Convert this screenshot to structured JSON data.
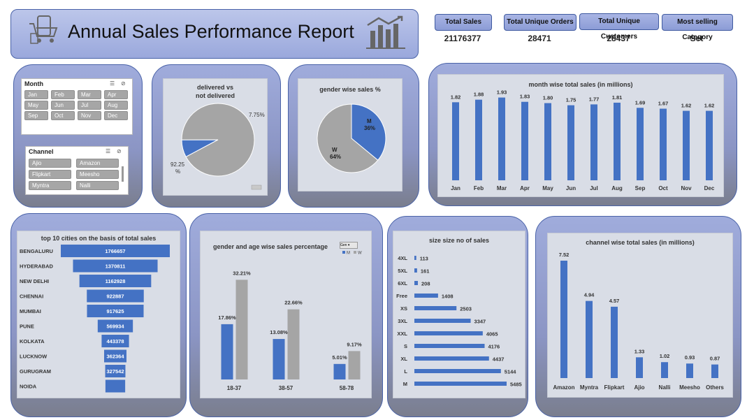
{
  "header": {
    "title": "Annual Sales Performance Report"
  },
  "kpis": [
    {
      "label": "Total Sales",
      "value": "21176377"
    },
    {
      "label": "Total Unique Orders",
      "value": "28471"
    },
    {
      "label": "Total Unique Customers",
      "value": "28437"
    },
    {
      "label": "Most selling Category",
      "value": "Set"
    }
  ],
  "slicers": {
    "month": {
      "title": "Month",
      "items": [
        "Jan",
        "Feb",
        "Mar",
        "Apr",
        "May",
        "Jun",
        "Jul",
        "Aug",
        "Sep",
        "Oct",
        "Nov",
        "Dec"
      ]
    },
    "channel": {
      "title": "Channel",
      "items": [
        "Ajio",
        "Amazon",
        "Flipkart",
        "Meesho",
        "Myntra",
        "Nalli"
      ]
    }
  },
  "chart_data": [
    {
      "id": "delivered",
      "type": "pie",
      "title": "delivered vs not delivered",
      "title_lines": [
        "delivered vs",
        "not delivered"
      ],
      "slices": [
        {
          "label": "7.75%",
          "value": 7.75,
          "color": "#4472c4"
        },
        {
          "label": "92.25 %",
          "value": 92.25,
          "color": "#a5a5a5"
        }
      ]
    },
    {
      "id": "gender",
      "type": "pie",
      "title": "gender wise sales %",
      "slices": [
        {
          "label": "M",
          "pct": "36%",
          "value": 36,
          "color": "#4472c4"
        },
        {
          "label": "W",
          "pct": "64%",
          "value": 64,
          "color": "#a5a5a5"
        }
      ]
    },
    {
      "id": "month",
      "type": "bar",
      "title": "month wise total sales (in millions)",
      "categories": [
        "Jan",
        "Feb",
        "Mar",
        "Apr",
        "May",
        "Jun",
        "Jul",
        "Aug",
        "Sep",
        "Oct",
        "Nov",
        "Dec"
      ],
      "values": [
        1.82,
        1.88,
        1.93,
        1.83,
        1.8,
        1.75,
        1.77,
        1.81,
        1.69,
        1.67,
        1.62,
        1.62
      ],
      "labels": [
        "1.82",
        "1.88",
        "1.93",
        "1.83",
        "1.80",
        "1.75",
        "1.77",
        "1.81",
        "1.69",
        "1.67",
        "1.62",
        "1.62"
      ],
      "color": "#4472c4"
    },
    {
      "id": "cities",
      "type": "bar",
      "orientation": "horizontal-funnel",
      "title": "top 10 cities on the basis of total sales",
      "categories": [
        "BENGALURU",
        "HYDERABAD",
        "NEW DELHI",
        "CHENNAI",
        "MUMBAI",
        "PUNE",
        "KOLKATA",
        "LUCKNOW",
        "GURUGRAM",
        "NOIDA"
      ],
      "values": [
        1766657,
        1370811,
        1162928,
        922887,
        917625,
        569934,
        443378,
        362364,
        327542,
        320000
      ],
      "labels": [
        "1766657",
        "1370811",
        "1162928",
        "922887",
        "917625",
        "569934",
        "443378",
        "362364",
        "327542",
        ""
      ],
      "color": "#4472c4"
    },
    {
      "id": "gender_age",
      "type": "bar",
      "title": "gender and age wise sales percentage",
      "filter_label": "Gen",
      "categories": [
        "18-37",
        "38-57",
        "58-78"
      ],
      "series": [
        {
          "name": "M",
          "values": [
            17.86,
            13.08,
            5.01
          ],
          "labels": [
            "17.86%",
            "13.08%",
            "5.01%"
          ],
          "color": "#4472c4"
        },
        {
          "name": "W",
          "values": [
            32.21,
            22.66,
            9.17
          ],
          "labels": [
            "32.21%",
            "22.66%",
            "9.17%"
          ],
          "color": "#a5a5a5"
        }
      ]
    },
    {
      "id": "size",
      "type": "bar",
      "orientation": "horizontal",
      "title": "size size no of sales",
      "categories": [
        "4XL",
        "5XL",
        "6XL",
        "Free",
        "XS",
        "3XL",
        "XXL",
        "S",
        "XL",
        "L",
        "M"
      ],
      "values": [
        113,
        161,
        208,
        1408,
        2503,
        3347,
        4065,
        4176,
        4437,
        5144,
        5485
      ],
      "labels": [
        "113",
        "161",
        "208",
        "1408",
        "2503",
        "3347",
        "4065",
        "4176",
        "4437",
        "5144",
        "5485"
      ],
      "color": "#4472c4"
    },
    {
      "id": "channel",
      "type": "bar",
      "title": "channel wise total sales (in millions)",
      "categories": [
        "Amazon",
        "Myntra",
        "Flipkart",
        "Ajio",
        "Nalli",
        "Meesho",
        "Others"
      ],
      "values": [
        7.52,
        4.94,
        4.57,
        1.33,
        1.02,
        0.93,
        0.87
      ],
      "labels": [
        "7.52",
        "4.94",
        "4.57",
        "1.33",
        "1.02",
        "0.93",
        "0.87"
      ],
      "color": "#4472c4"
    }
  ]
}
